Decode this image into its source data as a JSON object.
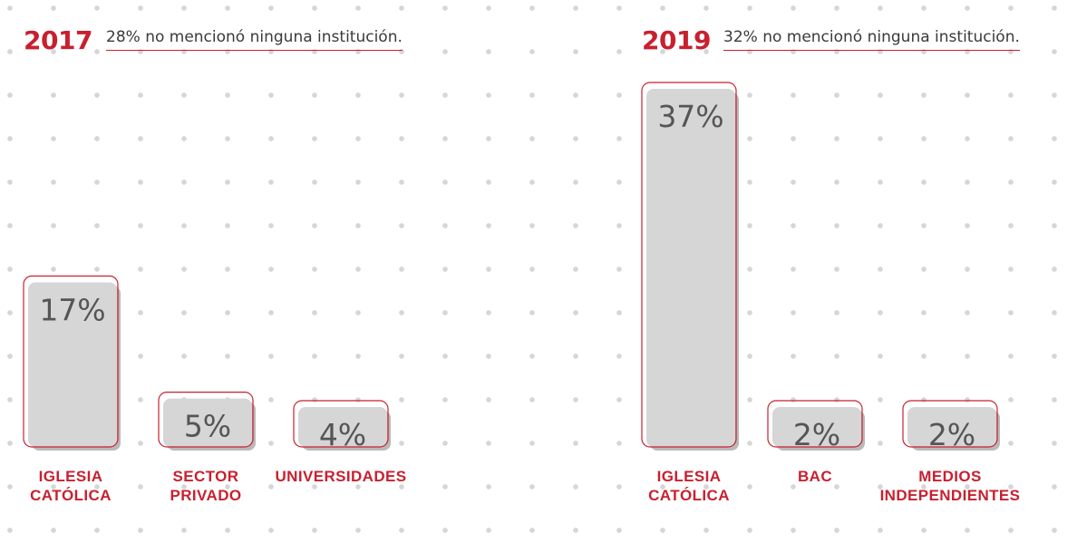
{
  "colors": {
    "accent": "#c8202f",
    "bar_fill": "#d6d6d6",
    "bar_shadow": "#b9b9b9",
    "value_text": "#555555"
  },
  "chart_data": [
    {
      "type": "bar",
      "title": "2017",
      "subtitle": "28% no mencionó ninguna institución.",
      "categories": [
        [
          "IGLESIA",
          "CATÓLICA"
        ],
        [
          "SECTOR",
          "PRIVADO"
        ],
        [
          "UNIVERSIDADES"
        ]
      ],
      "values": [
        17,
        5,
        4
      ],
      "value_labels": [
        "17%",
        "5%",
        "4%"
      ],
      "ylim": [
        0,
        37
      ],
      "grid": false
    },
    {
      "type": "bar",
      "title": "2019",
      "subtitle": "32% no mencionó ninguna institución.",
      "categories": [
        [
          "IGLESIA",
          "CATÓLICA"
        ],
        [
          "BAC"
        ],
        [
          "MEDIOS",
          "INDEPENDIENTES"
        ]
      ],
      "values": [
        37,
        2,
        2
      ],
      "value_labels": [
        "37%",
        "2%",
        "2%"
      ],
      "ylim": [
        0,
        37
      ],
      "grid": false
    }
  ]
}
